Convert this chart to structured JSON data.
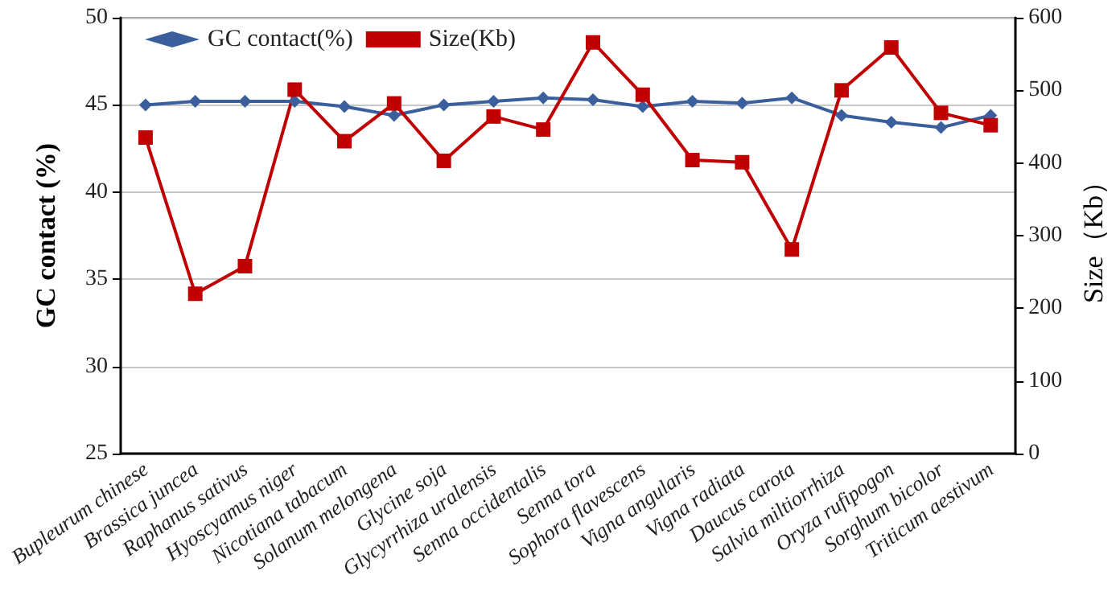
{
  "chart_data": {
    "type": "line",
    "ylabel": "GC contact (%)",
    "y2label": "Size（Kb）",
    "categories": [
      "Bupleurum chinese",
      "Brassica juncea",
      "Raphanus sativus",
      "Hyoscyamus niger",
      "Nicotiana tabacum",
      "Solanum melongena",
      "Glycine soja",
      "Glycyrrhiza uralensis",
      "Senna occidentalis",
      "Senna tora",
      "Sophora flavescens",
      "Vigna angularis",
      "Vigna radiata",
      "Daucus carota",
      "Salvia miltiorrhiza",
      "Oryza rufipogon",
      "Sorghum bicolor",
      "Triticum aestivum"
    ],
    "series": [
      {
        "name": "GC contact(%)",
        "color": "#3a5f9c",
        "marker": "diamond",
        "values": [
          45.0,
          45.2,
          45.2,
          45.2,
          44.9,
          44.4,
          45.0,
          45.2,
          45.4,
          45.3,
          44.9,
          45.2,
          45.1,
          45.4,
          44.4,
          44.0,
          43.7,
          44.4
        ]
      },
      {
        "name": "Size(Kb)",
        "color": "#c00000",
        "marker": "square",
        "axis": "y2",
        "values": [
          435,
          220,
          258,
          501,
          430,
          482,
          403,
          464,
          446,
          566,
          494,
          404,
          401,
          281,
          500,
          559,
          469,
          452
        ]
      }
    ],
    "ylim": [
      25,
      50
    ],
    "yticks": [
      25,
      30,
      35,
      40,
      45,
      50
    ],
    "y2lim": [
      0,
      600
    ],
    "y2ticks": [
      0,
      100,
      200,
      300,
      400,
      500,
      600
    ],
    "grid": "y",
    "legend": "top left",
    "line_style": "solid"
  }
}
